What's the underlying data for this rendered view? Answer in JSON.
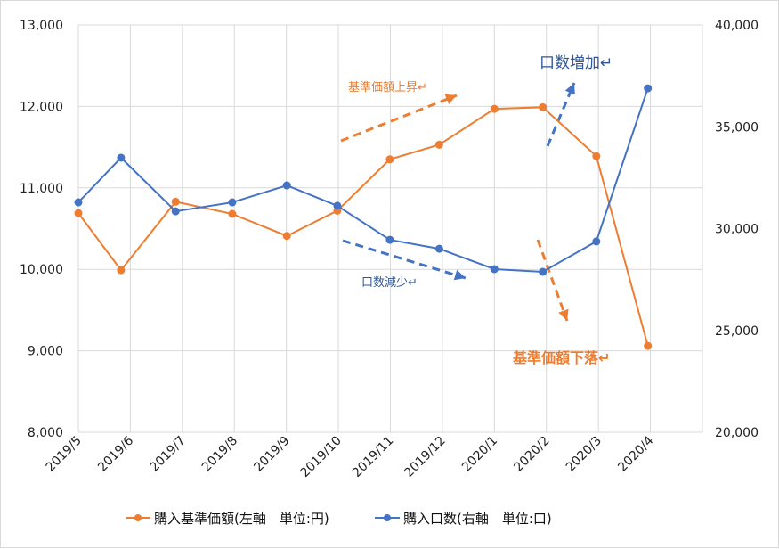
{
  "chart_data": {
    "type": "line",
    "categories": [
      "2019/5",
      "2019/6",
      "2019/7",
      "2019/8",
      "2019/9",
      "2019/10",
      "2019/11",
      "2019/12",
      "2020/1",
      "2020/2",
      "2020/3",
      "2020/4"
    ],
    "y_left": {
      "range": [
        8000,
        13000
      ],
      "ticks": [
        "8,000",
        "9,000",
        "10,000",
        "11,000",
        "12,000",
        "13,000"
      ]
    },
    "y_right": {
      "range": [
        20000,
        40000
      ],
      "ticks": [
        "20,000",
        "25,000",
        "30,000",
        "35,000",
        "40,000"
      ]
    },
    "grid": true,
    "legend_position": "bottom",
    "series": [
      {
        "name": "購入基準価額(左軸　単位:円)",
        "axis": "left",
        "color": "#ED7D31",
        "values": [
          10690,
          9990,
          10830,
          10680,
          10410,
          10720,
          11350,
          11530,
          11970,
          11990,
          11390,
          9060
        ]
      },
      {
        "name": "購入口数(右軸　単位:口)",
        "axis": "right",
        "color": "#4472C4",
        "values": [
          31290,
          33480,
          30850,
          31290,
          32120,
          31120,
          29450,
          29010,
          28010,
          27880,
          29370,
          36890
        ]
      }
    ],
    "annotations": [
      {
        "text": "基準価額上昇↵",
        "color": "#ED7D31"
      },
      {
        "text": "口数増加↵",
        "color": "#2F5597"
      },
      {
        "text": "口数減少↵",
        "color": "#2F5597"
      },
      {
        "text": "基準価額下落↵",
        "color": "#ED7D31"
      }
    ]
  }
}
